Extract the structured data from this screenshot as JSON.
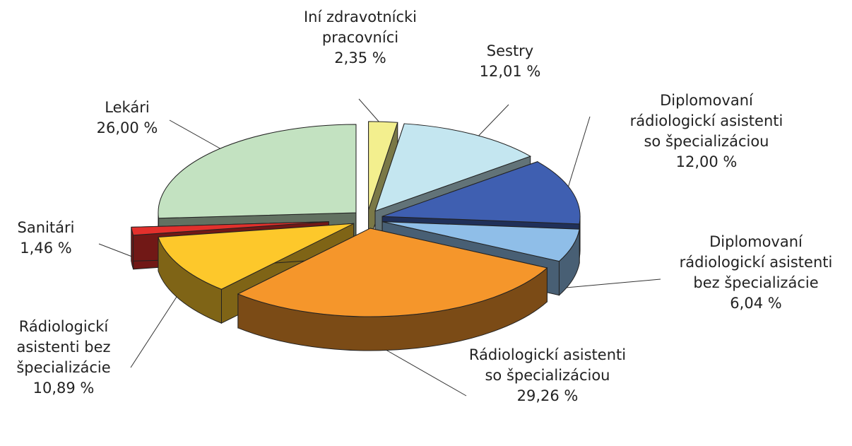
{
  "chart_data": {
    "type": "pie3d",
    "categories": [
      "Iní zdravotnícki pracovníci",
      "Sestry",
      "Diplomovaní rádiologickí asistenti so špecializáciou",
      "Diplomovaní rádiologickí asistenti bez špecializácie",
      "Rádiologickí asistenti so špecializáciou",
      "Rádiologickí asistenti bez špecializácie",
      "Sanitári",
      "Lekári"
    ],
    "values": [
      2.35,
      12.01,
      12.0,
      6.04,
      29.26,
      10.89,
      1.46,
      26.0
    ],
    "value_labels": [
      "2,35 %",
      "12,01 %",
      "12,00 %",
      "6,04 %",
      "29,26 %",
      "10,89 %",
      "1,46 %",
      "26,00 %"
    ],
    "colors": [
      "#f3ef8e",
      "#c4e6f0",
      "#3f5fb1",
      "#8fbee8",
      "#f5962b",
      "#fdc82b",
      "#e2302c",
      "#c3e2c1"
    ]
  }
}
